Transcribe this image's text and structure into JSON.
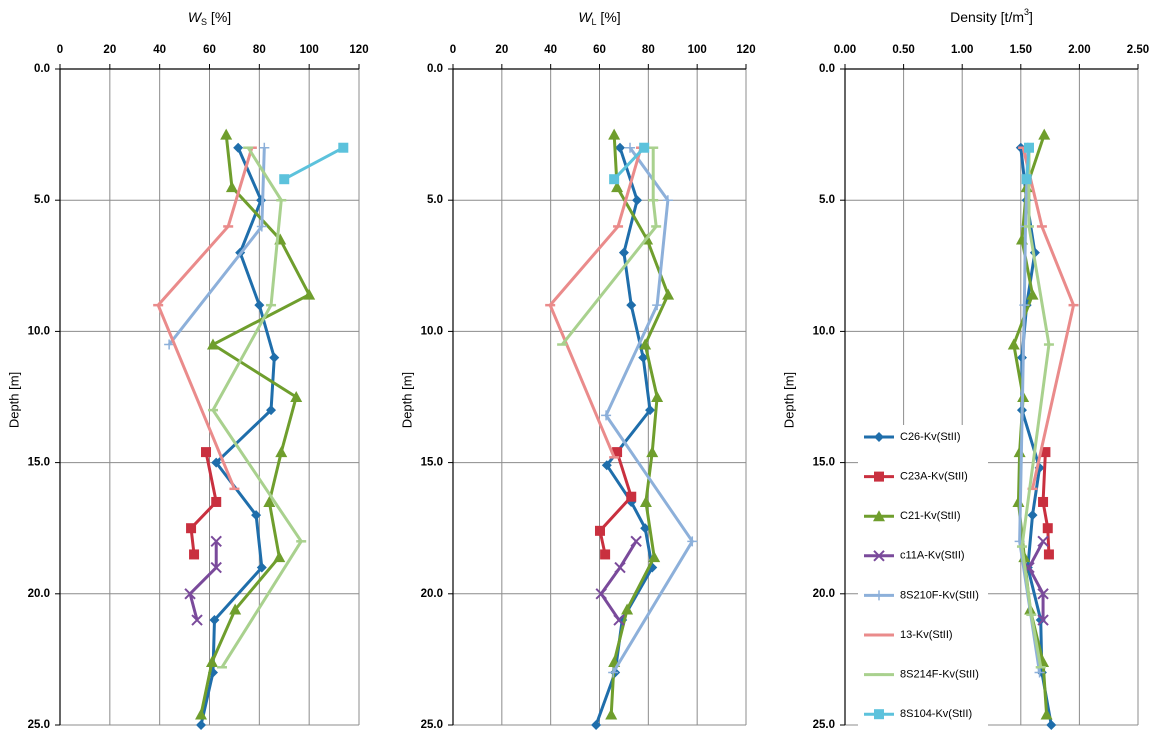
{
  "chart_data": [
    {
      "type": "line",
      "title": [
        {
          "text": "W",
          "style": "italic"
        },
        {
          "text": "S",
          "style": "sub"
        },
        {
          "text": "  [%]"
        }
      ],
      "ylabel": "Depth [m]",
      "xlim": [
        0,
        120
      ],
      "xticks": [
        0,
        20,
        40,
        60,
        80,
        100,
        120
      ],
      "ylim": [
        0,
        25
      ],
      "y_inverted": true,
      "yticks": [
        {
          "value": 0,
          "label": "0.0"
        },
        {
          "value": 5,
          "label": "5.0"
        },
        {
          "value": 10,
          "label": "10.0"
        },
        {
          "value": 15,
          "label": "15.0"
        },
        {
          "value": 20,
          "label": "20.0"
        },
        {
          "value": 25,
          "label": "25.0"
        }
      ],
      "grid": true,
      "series": [
        {
          "name": "C26-Kv(StII)",
          "color": "#1f6eab",
          "marker": "diamond",
          "x": [
            71.5,
            80.7,
            72.3,
            80,
            86,
            84.7,
            62.7,
            78.7,
            81,
            62,
            61.4,
            56.6
          ],
          "y": [
            3,
            5,
            7,
            9,
            11,
            13,
            15,
            17,
            19,
            21,
            23,
            25
          ]
        },
        {
          "name": "C23A-Kv(StII)",
          "color": "#c9303f",
          "marker": "square",
          "x": [
            58.6,
            62.7,
            52.6,
            53.8
          ],
          "y": [
            14.6,
            16.5,
            17.5,
            18.5
          ]
        },
        {
          "name": "C21-Kv(StII)",
          "color": "#6f9e2d",
          "marker": "triangle",
          "x": [
            66.7,
            69,
            88.4,
            100,
            61.4,
            94.8,
            88.8,
            84,
            88,
            70.3,
            61,
            56.6
          ],
          "y": [
            2.5,
            4.5,
            6.5,
            8.6,
            10.5,
            12.5,
            14.6,
            16.5,
            18.6,
            20.6,
            22.6,
            24.6
          ]
        },
        {
          "name": "c11A-Kv(StII)",
          "color": "#7a4a9b",
          "marker": "x",
          "x": [
            62.7,
            62.7,
            52.2,
            55
          ],
          "y": [
            18,
            19,
            20,
            21
          ]
        },
        {
          "name": "8S210F-Kv(StII)",
          "color": "#8db0da",
          "marker": "plus",
          "x": [
            82,
            81,
            43.8
          ],
          "y": [
            3,
            6,
            10.5
          ]
        },
        {
          "name": "13-Kv(StII)",
          "color": "#ea8b8b",
          "marker": "dash",
          "x": [
            77,
            67.5,
            39.4,
            70
          ],
          "y": [
            3,
            6,
            9,
            16
          ]
        },
        {
          "name": "8S214F-Kv(StII)",
          "color": "#a9d18e",
          "marker": "dash",
          "x": [
            75.5,
            88.8,
            84.7,
            61.4,
            96.8,
            65
          ],
          "y": [
            3,
            5,
            9,
            13,
            18,
            22.8
          ]
        },
        {
          "name": "8S104-Kv(StII)",
          "color": "#5cc2dc",
          "marker": "square",
          "x": [
            113.7,
            90
          ],
          "y": [
            3,
            4.2
          ]
        }
      ]
    },
    {
      "type": "line",
      "title": [
        {
          "text": "W",
          "style": "italic"
        },
        {
          "text": "L",
          "style": "sub"
        },
        {
          "text": "  [%]"
        }
      ],
      "ylabel": "Depth [m]",
      "xlim": [
        0,
        120
      ],
      "xticks": [
        0,
        20,
        40,
        60,
        80,
        100,
        120
      ],
      "ylim": [
        0,
        25
      ],
      "y_inverted": true,
      "yticks": [
        {
          "value": 0,
          "label": "0.0"
        },
        {
          "value": 5,
          "label": "5.0"
        },
        {
          "value": 10,
          "label": "10.0"
        },
        {
          "value": 15,
          "label": "15.0"
        },
        {
          "value": 20,
          "label": "20.0"
        },
        {
          "value": 25,
          "label": "25.0"
        }
      ],
      "grid": true,
      "series": [
        {
          "name": "C26-Kv(StII)",
          "color": "#1f6eab",
          "marker": "diamond",
          "x": [
            68.4,
            75.4,
            70,
            73,
            77.9,
            80.7,
            63,
            73,
            78.7,
            81.6,
            69.3,
            66.4,
            58.6
          ],
          "y": [
            3,
            5,
            7,
            9,
            11,
            13,
            15.1,
            16.5,
            17.5,
            19,
            21,
            23,
            25
          ]
        },
        {
          "name": "C23A-Kv(StII)",
          "color": "#c9303f",
          "marker": "square",
          "x": [
            67.2,
            73,
            60.2,
            62.3
          ],
          "y": [
            14.6,
            16.3,
            17.6,
            18.5
          ]
        },
        {
          "name": "C21-Kv(StII)",
          "color": "#6f9e2d",
          "marker": "triangle",
          "x": [
            66,
            67.2,
            79.5,
            88.1,
            78.7,
            83.6,
            81.6,
            79,
            82.4,
            71.3,
            66,
            64.8
          ],
          "y": [
            2.5,
            4.5,
            6.5,
            8.6,
            10.5,
            12.5,
            14.6,
            16.5,
            18.6,
            20.6,
            22.6,
            24.6
          ]
        },
        {
          "name": "c11A-Kv(StII)",
          "color": "#7a4a9b",
          "marker": "x",
          "x": [
            75,
            68.4,
            60.7,
            68
          ],
          "y": [
            18,
            19,
            20,
            21
          ]
        },
        {
          "name": "8S210F-Kv(StII)",
          "color": "#8db0da",
          "marker": "plus",
          "x": [
            72.5,
            88,
            83.6,
            62.7,
            98,
            65.6
          ],
          "y": [
            3,
            5,
            9,
            13.2,
            18,
            23
          ]
        },
        {
          "name": "13-Kv(StII)",
          "color": "#ea8b8b",
          "marker": "dash",
          "x": [
            77,
            67.6,
            39.8,
            66
          ],
          "y": [
            3,
            6,
            9,
            14.8
          ]
        },
        {
          "name": "8S214F-Kv(StII)",
          "color": "#a9d18e",
          "marker": "dash",
          "x": [
            82,
            82,
            83.2,
            44.7
          ],
          "y": [
            3,
            5,
            6,
            10.5
          ]
        },
        {
          "name": "8S104-Kv(StII)",
          "color": "#5cc2dc",
          "marker": "square",
          "x": [
            78.3,
            66
          ],
          "y": [
            3,
            4.2
          ]
        }
      ]
    },
    {
      "type": "line",
      "title": [
        {
          "text": "Density [t/m"
        },
        {
          "text": "3",
          "style": "sup"
        },
        {
          "text": "]"
        }
      ],
      "ylabel": "Depth [m]",
      "xlim": [
        0,
        2.5
      ],
      "xticks": [
        {
          "value": 0,
          "label": "0.00"
        },
        {
          "value": 0.5,
          "label": "0.50"
        },
        {
          "value": 1,
          "label": "1.00"
        },
        {
          "value": 1.5,
          "label": "1.50"
        },
        {
          "value": 2,
          "label": "2.00"
        },
        {
          "value": 2.5,
          "label": "2.50"
        }
      ],
      "ylim": [
        0,
        25
      ],
      "y_inverted": true,
      "yticks": [
        {
          "value": 0,
          "label": "0.0"
        },
        {
          "value": 5,
          "label": "5.0"
        },
        {
          "value": 10,
          "label": "10.0"
        },
        {
          "value": 15,
          "label": "15.0"
        },
        {
          "value": 20,
          "label": "20.0"
        },
        {
          "value": 25,
          "label": "25.0"
        }
      ],
      "grid": true,
      "legend": "lower-left",
      "series": [
        {
          "name": "C26-Kv(StII)",
          "color": "#1f6eab",
          "marker": "diamond",
          "x": [
            1.5,
            1.55,
            1.62,
            1.55,
            1.51,
            1.51,
            1.66,
            1.6,
            1.56,
            1.67,
            1.68,
            1.76
          ],
          "y": [
            3,
            5,
            7,
            9,
            11,
            13,
            15.2,
            17,
            19,
            21,
            23,
            25
          ]
        },
        {
          "name": "C23A-Kv(StII)",
          "color": "#c9303f",
          "marker": "square",
          "x": [
            1.71,
            1.69,
            1.73,
            1.74
          ],
          "y": [
            14.6,
            16.5,
            17.5,
            18.5
          ]
        },
        {
          "name": "C21-Kv(StII)",
          "color": "#6f9e2d",
          "marker": "triangle",
          "x": [
            1.7,
            1.55,
            1.51,
            1.6,
            1.44,
            1.52,
            1.49,
            1.48,
            1.53,
            1.58,
            1.69,
            1.72
          ],
          "y": [
            2.5,
            4.5,
            6.5,
            8.6,
            10.5,
            12.5,
            14.6,
            16.5,
            18.6,
            20.6,
            22.6,
            24.6
          ]
        },
        {
          "name": "c11A-Kv(StII)",
          "color": "#7a4a9b",
          "marker": "x",
          "x": [
            1.69,
            1.57,
            1.69,
            1.69
          ],
          "y": [
            18,
            19,
            20,
            21
          ]
        },
        {
          "name": "8S210F-Kv(StII)",
          "color": "#8db0da",
          "marker": "plus",
          "x": [
            1.56,
            1.54,
            1.53,
            1.49,
            1.66
          ],
          "y": [
            3,
            6,
            9,
            18,
            23
          ]
        },
        {
          "name": "13-Kv(StII)",
          "color": "#ea8b8b",
          "marker": "dash",
          "x": [
            1.52,
            1.68,
            1.95,
            1.6
          ],
          "y": [
            3,
            6,
            9,
            16
          ]
        },
        {
          "name": "8S214F-Kv(StII)",
          "color": "#a9d18e",
          "marker": "dash",
          "x": [
            1.57,
            1.57,
            1.74,
            1.51,
            1.59,
            1.67
          ],
          "y": [
            3,
            6,
            10.5,
            18.2,
            20.8,
            22.8
          ]
        },
        {
          "name": "8S104-Kv(StII)",
          "color": "#5cc2dc",
          "marker": "square",
          "x": [
            1.57,
            1.55
          ],
          "y": [
            3,
            4.2
          ]
        }
      ]
    }
  ]
}
